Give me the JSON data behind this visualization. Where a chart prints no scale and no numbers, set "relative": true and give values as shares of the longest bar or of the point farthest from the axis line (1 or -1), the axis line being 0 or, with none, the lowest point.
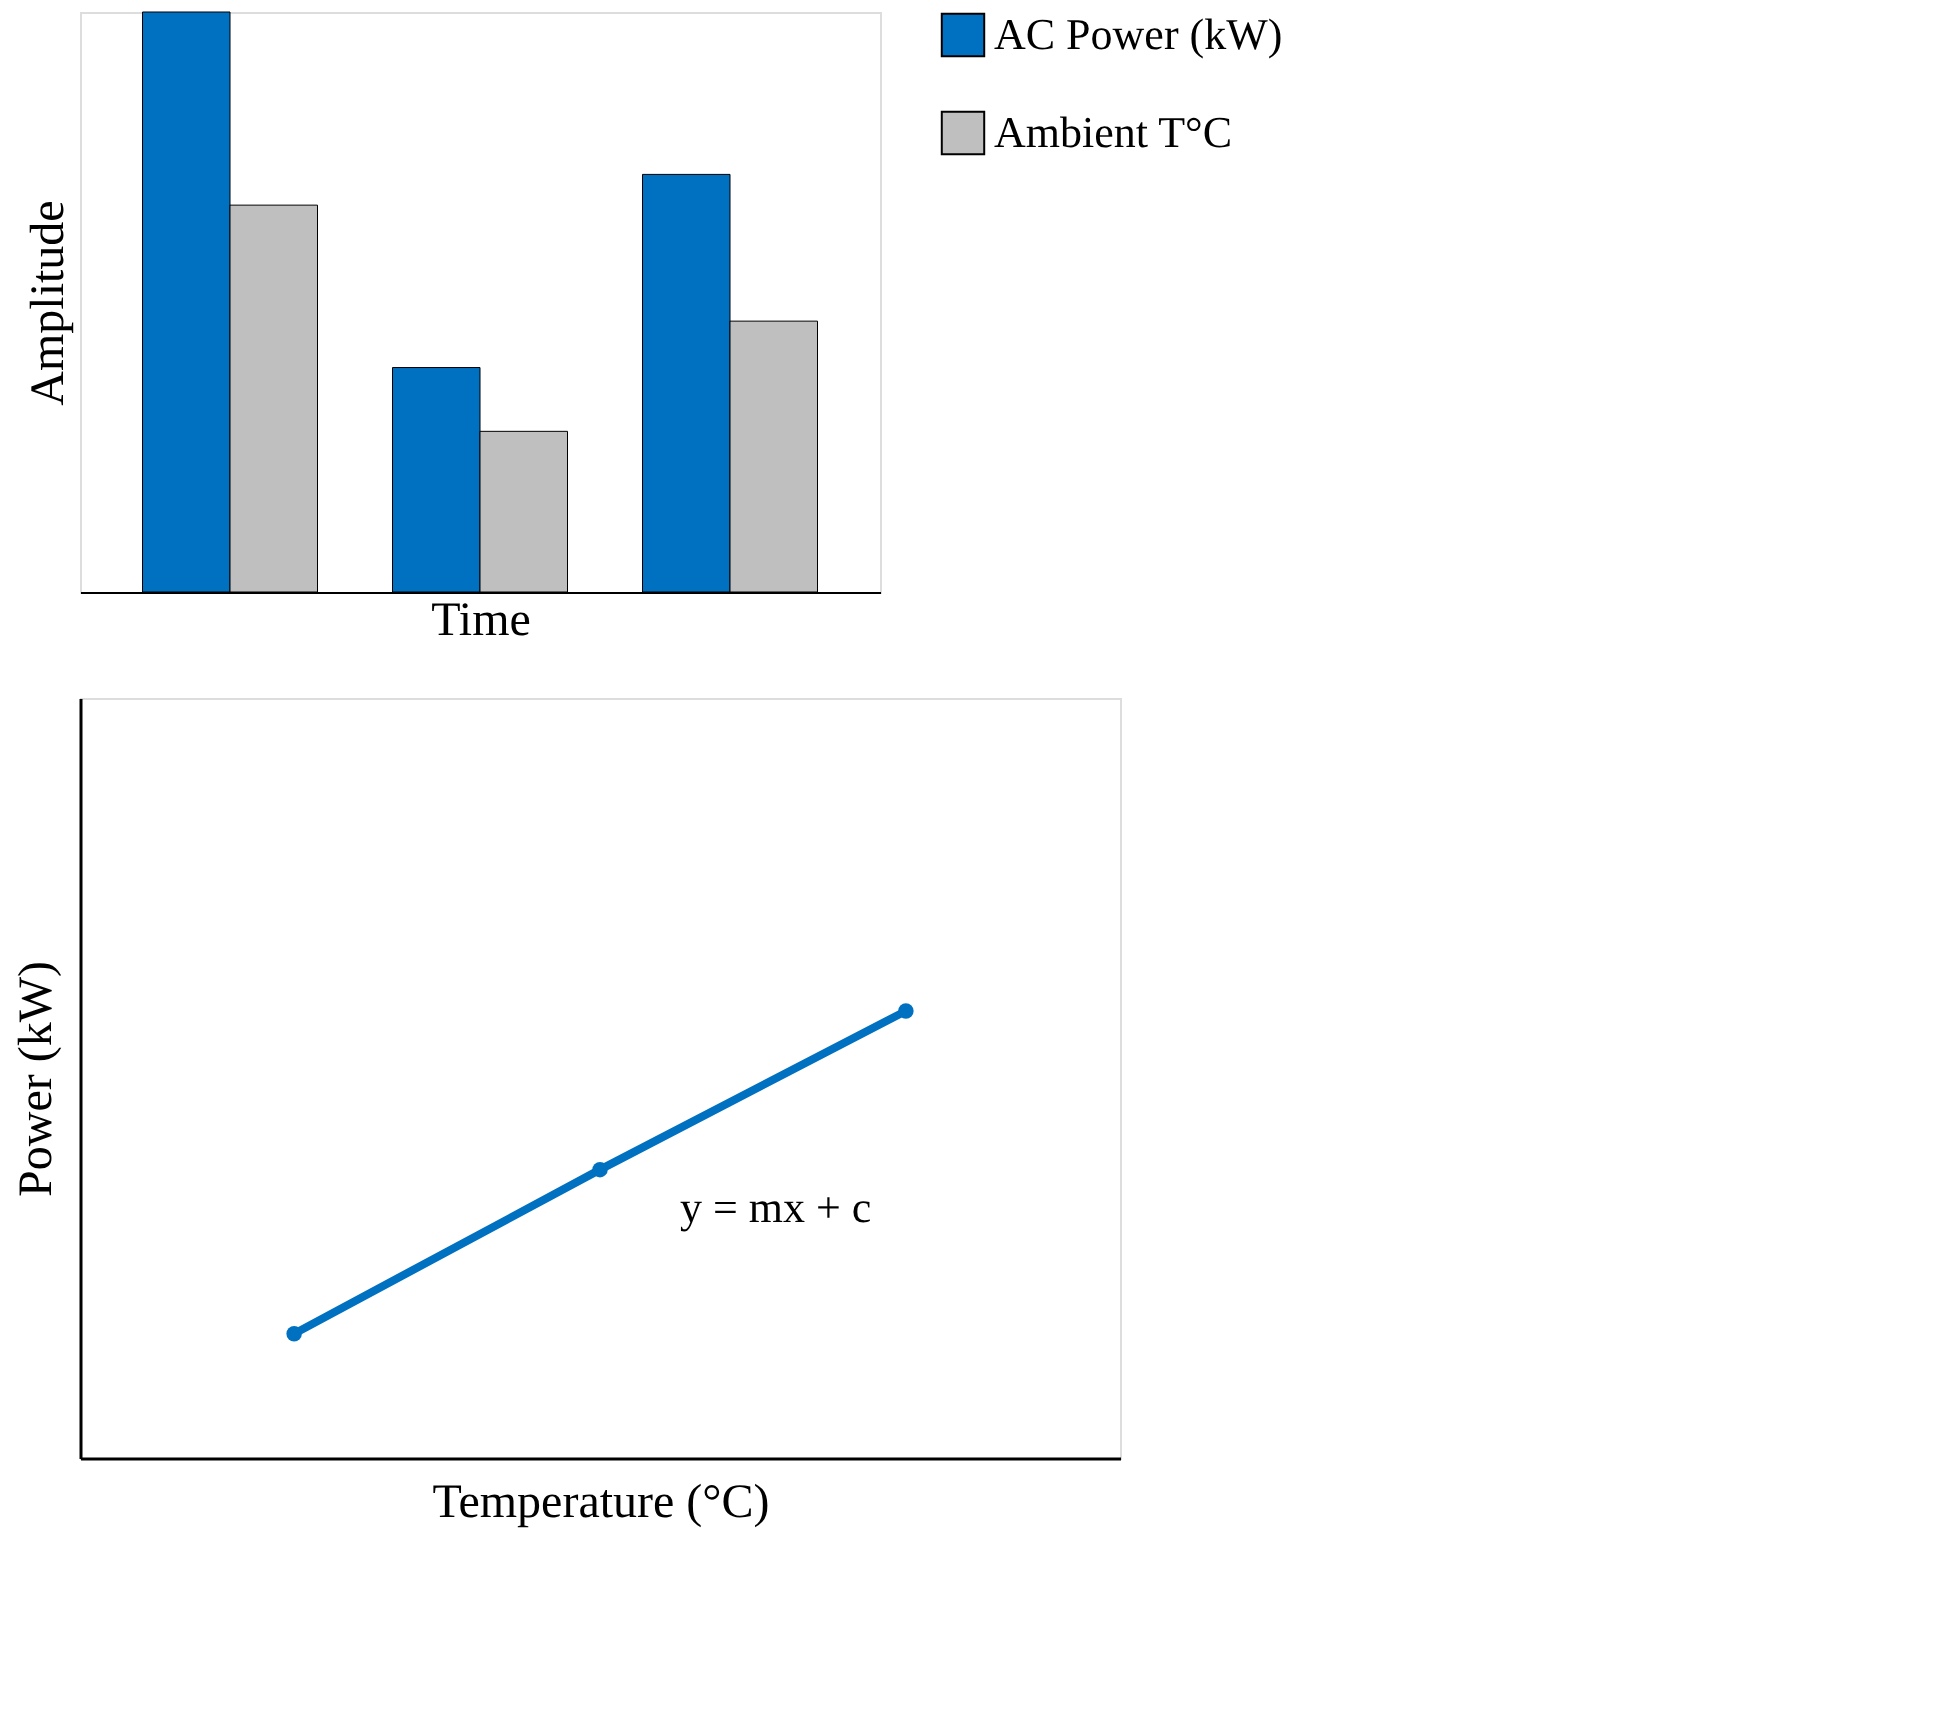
{
  "chart_data": [
    {
      "type": "bar",
      "relative": true,
      "xlabel": "Time",
      "ylabel": "Amplitude",
      "legend": "right",
      "categories": [
        null,
        null,
        null
      ],
      "series": [
        {
          "name": "AC Power (kW)",
          "color": "#0070c0",
          "values": [
            1,
            0.387,
            0.72
          ]
        },
        {
          "name": "Ambient T°C",
          "color": "#bfbfbf",
          "values": [
            0.667,
            0.277,
            0.467
          ]
        }
      ]
    },
    {
      "type": "line",
      "relative": true,
      "xlabel": "Temperature (°C)",
      "ylabel": "Power (kW)",
      "marker": "circle",
      "categories": [
        null,
        null,
        null
      ],
      "series": [
        {
          "color": "#0070c0",
          "values": [
            0.278,
            0.645,
            1
          ]
        }
      ],
      "annotations": [
        "y = mx + c"
      ]
    }
  ]
}
